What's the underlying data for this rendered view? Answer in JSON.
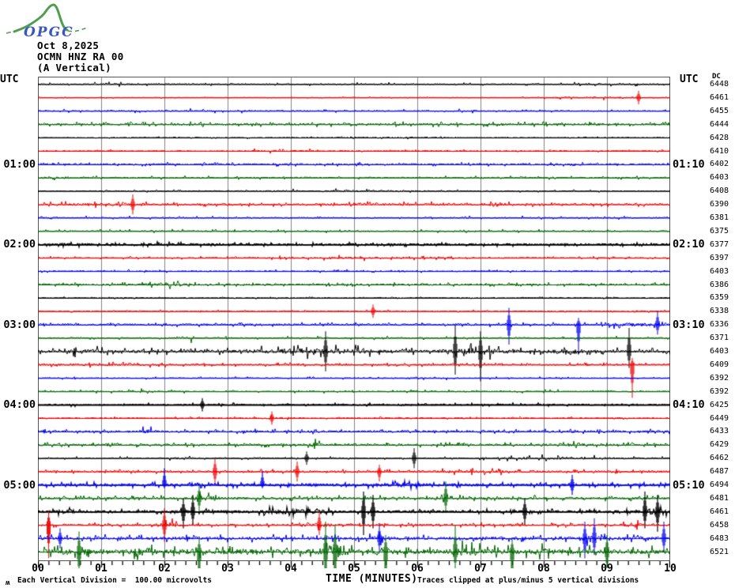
{
  "logo": {
    "text": "OPGC"
  },
  "header": {
    "date": "Oct 8,2025",
    "station": "OCMN HNZ RA 00",
    "component": "(A Vertical)"
  },
  "axis_titles": {
    "left": "UTC",
    "right": "UTC"
  },
  "dc_header": "DC",
  "left_time_labels": [
    {
      "row": 7,
      "text": "01:00"
    },
    {
      "row": 13,
      "text": "02:00"
    },
    {
      "row": 19,
      "text": "03:00"
    },
    {
      "row": 25,
      "text": "04:00"
    },
    {
      "row": 31,
      "text": "05:00"
    }
  ],
  "right_time_labels": [
    {
      "row": 7,
      "text": "01:10"
    },
    {
      "row": 13,
      "text": "02:10"
    },
    {
      "row": 19,
      "text": "03:10"
    },
    {
      "row": 25,
      "text": "04:10"
    },
    {
      "row": 31,
      "text": "05:10"
    }
  ],
  "x_axis": {
    "labels": [
      "00",
      "01",
      "02",
      "03",
      "04",
      "05",
      "06",
      "07",
      "08",
      "09",
      "10"
    ],
    "title": "TIME (MINUTES)",
    "minutes": 10,
    "minor_ticks_per_minute": 5
  },
  "footer": {
    "glyph": "ʍ",
    "left": "Each Vertical Division =  100.00 microvolts",
    "right": "Traces clipped at plus/minus 5 vertical divisions"
  },
  "colors": {
    "black": "#000000",
    "red": "#ee0000",
    "blue": "#0000ee",
    "green": "#006400",
    "gridline": "#808080",
    "logo_green": "#4f9e4f",
    "logo_blue": "#3a57c0"
  },
  "chart_data": {
    "type": "line",
    "subtype": "helicorder",
    "minutes_per_line": 10,
    "x_range_minutes": [
      0,
      10
    ],
    "vertical_division_microvolts": 100.0,
    "clip_divisions": 5,
    "traces": [
      {
        "dc": 6448,
        "color": "black",
        "amp": 0.7,
        "bold": false,
        "bursts": [
          [
            0,
            3.4,
            0.5
          ],
          [
            4,
            7,
            0.25
          ],
          [
            8,
            10,
            0.4
          ]
        ],
        "spikes": []
      },
      {
        "dc": 6461,
        "color": "red",
        "amp": 0.5,
        "bold": false,
        "bursts": [
          [
            7.9,
            9.9,
            0.9
          ]
        ],
        "spikes": [
          [
            9.5,
            2,
            2
          ]
        ]
      },
      {
        "dc": 6455,
        "color": "blue",
        "amp": 0.9,
        "bold": false,
        "bursts": [
          [
            0,
            5,
            0.35
          ],
          [
            6.5,
            8,
            0.3
          ]
        ],
        "spikes": []
      },
      {
        "dc": 6444,
        "color": "green",
        "amp": 1.1,
        "bold": false,
        "bursts": [
          [
            0,
            10,
            0.2
          ]
        ],
        "spikes": []
      },
      {
        "dc": 6428,
        "color": "black",
        "amp": 0.5,
        "bold": false,
        "bursts": [
          [
            3,
            7,
            0.35
          ]
        ],
        "spikes": []
      },
      {
        "dc": 6410,
        "color": "red",
        "amp": 0.7,
        "bold": false,
        "bursts": [
          [
            2.5,
            5,
            0.5
          ]
        ],
        "spikes": []
      },
      {
        "dc": 6402,
        "color": "blue",
        "amp": 1.0,
        "bold": false,
        "bursts": [],
        "spikes": []
      },
      {
        "dc": 6403,
        "color": "green",
        "amp": 0.9,
        "bold": false,
        "bursts": [
          [
            0,
            0.6,
            0.8
          ]
        ],
        "spikes": []
      },
      {
        "dc": 6408,
        "color": "black",
        "amp": 0.7,
        "bold": false,
        "bursts": [
          [
            2.8,
            6.6,
            0.8
          ]
        ],
        "spikes": []
      },
      {
        "dc": 6390,
        "color": "red",
        "amp": 1.1,
        "bold": false,
        "bursts": [
          [
            0,
            2,
            0.5
          ],
          [
            4.5,
            8,
            0.5
          ]
        ],
        "spikes": [
          [
            1.5,
            3,
            3
          ]
        ]
      },
      {
        "dc": 6381,
        "color": "blue",
        "amp": 0.9,
        "bold": false,
        "bursts": [
          [
            0,
            0.4,
            0.8
          ]
        ],
        "spikes": []
      },
      {
        "dc": 6375,
        "color": "green",
        "amp": 0.9,
        "bold": false,
        "bursts": [],
        "spikes": []
      },
      {
        "dc": 6377,
        "color": "black",
        "amp": 1.0,
        "bold": true,
        "bursts": [
          [
            0,
            2.8,
            0.4
          ]
        ],
        "spikes": []
      },
      {
        "dc": 6397,
        "color": "red",
        "amp": 0.8,
        "bold": false,
        "bursts": [
          [
            3.3,
            7,
            0.7
          ]
        ],
        "spikes": []
      },
      {
        "dc": 6403,
        "color": "blue",
        "amp": 0.8,
        "bold": false,
        "bursts": [],
        "spikes": []
      },
      {
        "dc": 6386,
        "color": "green",
        "amp": 1.0,
        "bold": false,
        "bursts": [
          [
            1.4,
            2.6,
            1.1
          ]
        ],
        "spikes": []
      },
      {
        "dc": 6359,
        "color": "black",
        "amp": 0.6,
        "bold": false,
        "bursts": [],
        "spikes": []
      },
      {
        "dc": 6338,
        "color": "red",
        "amp": 0.7,
        "bold": false,
        "bursts": [],
        "spikes": [
          [
            5.3,
            2,
            2
          ]
        ]
      },
      {
        "dc": 6336,
        "color": "blue",
        "amp": 1.1,
        "bold": false,
        "bursts": [
          [
            8.8,
            10,
            1.2
          ]
        ],
        "spikes": [
          [
            7.45,
            5,
            6
          ],
          [
            8.55,
            2,
            9
          ],
          [
            9.8,
            4,
            3
          ]
        ]
      },
      {
        "dc": 6371,
        "color": "green",
        "amp": 0.9,
        "bold": false,
        "bursts": [
          [
            2.2,
            2.6,
            1.4
          ]
        ],
        "spikes": []
      },
      {
        "dc": 6403,
        "color": "black",
        "amp": 1.7,
        "bold": false,
        "bursts": [
          [
            0.3,
            1.2,
            1.3
          ],
          [
            3.2,
            5.6,
            2.0
          ],
          [
            6.2,
            7.6,
            2.5
          ],
          [
            8.0,
            8.7,
            1.8
          ]
        ],
        "spikes": [
          [
            4.55,
            6,
            6
          ],
          [
            6.6,
            8,
            7
          ],
          [
            7.0,
            6,
            9
          ],
          [
            9.35,
            7,
            5
          ]
        ]
      },
      {
        "dc": 6409,
        "color": "red",
        "amp": 1.0,
        "bold": false,
        "bursts": [
          [
            0,
            2.4,
            0.5
          ]
        ],
        "spikes": [
          [
            9.4,
            2,
            13
          ]
        ]
      },
      {
        "dc": 6392,
        "color": "blue",
        "amp": 0.7,
        "bold": false,
        "bursts": [
          [
            5.75,
            6.15,
            1.1
          ],
          [
            6.4,
            6.75,
            1.1
          ]
        ],
        "spikes": []
      },
      {
        "dc": 6392,
        "color": "green",
        "amp": 0.9,
        "bold": false,
        "bursts": [
          [
            1.5,
            2.1,
            0.9
          ]
        ],
        "spikes": []
      },
      {
        "dc": 6425,
        "color": "black",
        "amp": 0.9,
        "bold": true,
        "bursts": [],
        "spikes": [
          [
            2.6,
            2,
            2
          ]
        ]
      },
      {
        "dc": 6449,
        "color": "red",
        "amp": 0.7,
        "bold": false,
        "bursts": [
          [
            3.5,
            4.0,
            0.7
          ]
        ],
        "spikes": [
          [
            3.7,
            2,
            2
          ]
        ]
      },
      {
        "dc": 6433,
        "color": "blue",
        "amp": 1.2,
        "bold": false,
        "bursts": [
          [
            1.55,
            1.85,
            1.7
          ]
        ],
        "spikes": []
      },
      {
        "dc": 6429,
        "color": "green",
        "amp": 1.2,
        "bold": false,
        "bursts": [
          [
            1.05,
            1.35,
            1.4
          ],
          [
            4.25,
            4.55,
            1.9
          ],
          [
            8.1,
            8.9,
            1.1
          ]
        ],
        "spikes": []
      },
      {
        "dc": 6462,
        "color": "black",
        "amp": 0.8,
        "bold": false,
        "bursts": [
          [
            2.0,
            2.6,
            0.7
          ],
          [
            6.8,
            9.3,
            1.1
          ]
        ],
        "spikes": [
          [
            4.25,
            2,
            2
          ],
          [
            5.95,
            3,
            3
          ]
        ]
      },
      {
        "dc": 6487,
        "color": "red",
        "amp": 1.1,
        "bold": false,
        "bursts": [
          [
            6.0,
            8.2,
            0.6
          ]
        ],
        "spikes": [
          [
            2.8,
            4,
            4
          ],
          [
            4.1,
            3,
            3
          ],
          [
            5.4,
            2,
            3
          ]
        ]
      },
      {
        "dc": 6494,
        "color": "blue",
        "amp": 1.4,
        "bold": true,
        "bursts": [
          [
            5.2,
            6.2,
            1.1
          ]
        ],
        "spikes": [
          [
            2.0,
            5,
            1
          ],
          [
            3.55,
            4,
            1
          ],
          [
            8.45,
            3,
            3
          ]
        ]
      },
      {
        "dc": 6481,
        "color": "green",
        "amp": 1.4,
        "bold": false,
        "bursts": [
          [
            2.4,
            2.9,
            1.8
          ],
          [
            6.2,
            6.7,
            1.8
          ]
        ],
        "spikes": [
          [
            2.55,
            4,
            4
          ],
          [
            6.45,
            5,
            4
          ]
        ]
      },
      {
        "dc": 6461,
        "color": "black",
        "amp": 1.3,
        "bold": true,
        "bursts": [
          [
            0.2,
            0.7,
            1.4
          ],
          [
            3.4,
            4.7,
            1.8
          ],
          [
            9.5,
            10,
            2.5
          ]
        ],
        "spikes": [
          [
            2.3,
            4,
            5
          ],
          [
            2.45,
            5,
            4
          ],
          [
            5.15,
            6,
            7
          ],
          [
            5.3,
            5,
            5
          ],
          [
            7.7,
            4,
            4
          ],
          [
            9.6,
            6,
            5
          ],
          [
            9.8,
            5,
            6
          ]
        ]
      },
      {
        "dc": 6458,
        "color": "red",
        "amp": 1.2,
        "bold": false,
        "bursts": [
          [
            1.8,
            2.3,
            2.2
          ],
          [
            4.3,
            4.7,
            1.4
          ],
          [
            9.2,
            9.6,
            1.4
          ]
        ],
        "spikes": [
          [
            0.17,
            4,
            30
          ],
          [
            2.0,
            5,
            5
          ],
          [
            4.45,
            4,
            3
          ]
        ]
      },
      {
        "dc": 6483,
        "color": "blue",
        "amp": 1.9,
        "bold": false,
        "bursts": [
          [
            5.2,
            5.6,
            1.4
          ],
          [
            8.5,
            9.0,
            1.8
          ]
        ],
        "spikes": [
          [
            0.35,
            3,
            3
          ],
          [
            5.4,
            4,
            4
          ],
          [
            8.65,
            5,
            6
          ],
          [
            8.8,
            6,
            5
          ],
          [
            9.9,
            5,
            4
          ]
        ]
      },
      {
        "dc": 6521,
        "color": "green",
        "amp": 3.0,
        "bold": false,
        "bursts": [
          [
            1.5,
            1.9,
            1.8
          ],
          [
            4.3,
            5.0,
            3.0
          ],
          [
            6.4,
            7.1,
            2.2
          ],
          [
            7.8,
            8.2,
            1.4
          ]
        ],
        "spikes": [
          [
            0.65,
            6,
            8
          ],
          [
            2.55,
            4,
            14
          ],
          [
            4.55,
            9,
            9
          ],
          [
            4.7,
            8,
            10
          ],
          [
            5.5,
            5,
            10
          ],
          [
            6.6,
            8,
            6
          ],
          [
            7.5,
            4,
            9
          ],
          [
            9.0,
            5,
            6
          ]
        ]
      }
    ]
  }
}
